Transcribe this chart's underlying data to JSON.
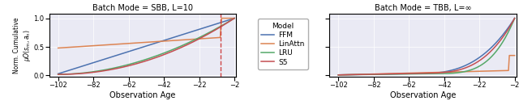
{
  "title_left": "Batch Mode = SBB, L=10",
  "title_right": "Batch Mode = TBB, L=∞",
  "xlabel": "Observation Age",
  "ylabel_line1": "Norm. Cumulative",
  "ylabel_line2": "$\\mu O(s_m, a_n)$",
  "xlim": [
    -107,
    -1
  ],
  "ylim": [
    -0.02,
    1.08
  ],
  "xticks": [
    -102,
    -82,
    -62,
    -42,
    -22,
    -2
  ],
  "yticks": [
    0.0,
    0.5,
    1.0
  ],
  "colors": {
    "FFM": "#4c72b0",
    "LinAttn": "#dd8452",
    "LRU": "#55a868",
    "S5": "#c44e52"
  },
  "vline_x": -10,
  "bg_color": "#eaeaf4",
  "legend_title": "Model",
  "legend_labels": [
    "FFM",
    "LinAttn",
    "LRU",
    "S5"
  ]
}
